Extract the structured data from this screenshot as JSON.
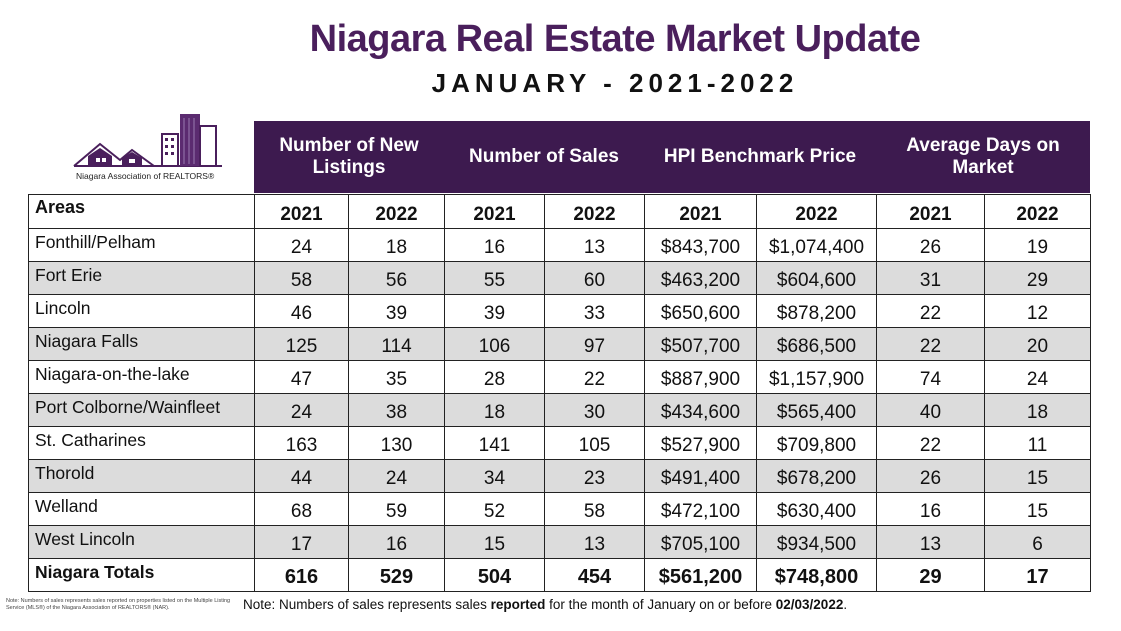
{
  "title": "Niagara Real Estate Market Update",
  "subtitle": "JANUARY  -  2021-2022",
  "logo": {
    "org": "Niagara Association of REALTORS®"
  },
  "groups": [
    "Number of New Listings",
    "Number of Sales",
    "HPI Benchmark Price",
    "Average Days on Market"
  ],
  "table": {
    "areas_header": "Areas",
    "years": [
      "2021",
      "2022",
      "2021",
      "2022",
      "2021",
      "2022",
      "2021",
      "2022"
    ],
    "rows": [
      {
        "area": "Fonthill/Pelham",
        "values": [
          "24",
          "18",
          "16",
          "13",
          "$843,700",
          "$1,074,400",
          "26",
          "19"
        ]
      },
      {
        "area": "Fort Erie",
        "values": [
          "58",
          "56",
          "55",
          "60",
          "$463,200",
          "$604,600",
          "31",
          "29"
        ]
      },
      {
        "area": "Lincoln",
        "values": [
          "46",
          "39",
          "39",
          "33",
          "$650,600",
          "$878,200",
          "22",
          "12"
        ]
      },
      {
        "area": "Niagara Falls",
        "values": [
          "125",
          "114",
          "106",
          "97",
          "$507,700",
          "$686,500",
          "22",
          "20"
        ]
      },
      {
        "area": "Niagara-on-the-lake",
        "values": [
          "47",
          "35",
          "28",
          "22",
          "$887,900",
          "$1,157,900",
          "74",
          "24"
        ]
      },
      {
        "area": "Port Colborne/Wainfleet",
        "values": [
          "24",
          "38",
          "18",
          "30",
          "$434,600",
          "$565,400",
          "40",
          "18"
        ]
      },
      {
        "area": "St. Catharines",
        "values": [
          "163",
          "130",
          "141",
          "105",
          "$527,900",
          "$709,800",
          "22",
          "11"
        ]
      },
      {
        "area": "Thorold",
        "values": [
          "44",
          "24",
          "34",
          "23",
          "$491,400",
          "$678,200",
          "26",
          "15"
        ]
      },
      {
        "area": "Welland",
        "values": [
          "68",
          "59",
          "52",
          "58",
          "$472,100",
          "$630,400",
          "16",
          "15"
        ]
      },
      {
        "area": "West Lincoln",
        "values": [
          "17",
          "16",
          "15",
          "13",
          "$705,100",
          "$934,500",
          "13",
          "6"
        ]
      }
    ],
    "totals": {
      "area": "Niagara Totals",
      "values": [
        "616",
        "529",
        "504",
        "454",
        "$561,200",
        "$748,800",
        "29",
        "17"
      ]
    }
  },
  "footnote_small": "Note: Numbers of sales represents sales reported on properties listed on the Multiple Listing Service (MLS®) of the Niagara Association of REALTORS® (NAR).",
  "footnote": {
    "prefix": "Note: Numbers of sales represents sales ",
    "bold1": "reported",
    "middle": " for the month of January on or before ",
    "bold2": "02/03/2022",
    "suffix": "."
  },
  "colors": {
    "brand_purple": "#4a1f5c",
    "header_band": "#3d1a4f",
    "row_shade": "#dcdcdc"
  }
}
